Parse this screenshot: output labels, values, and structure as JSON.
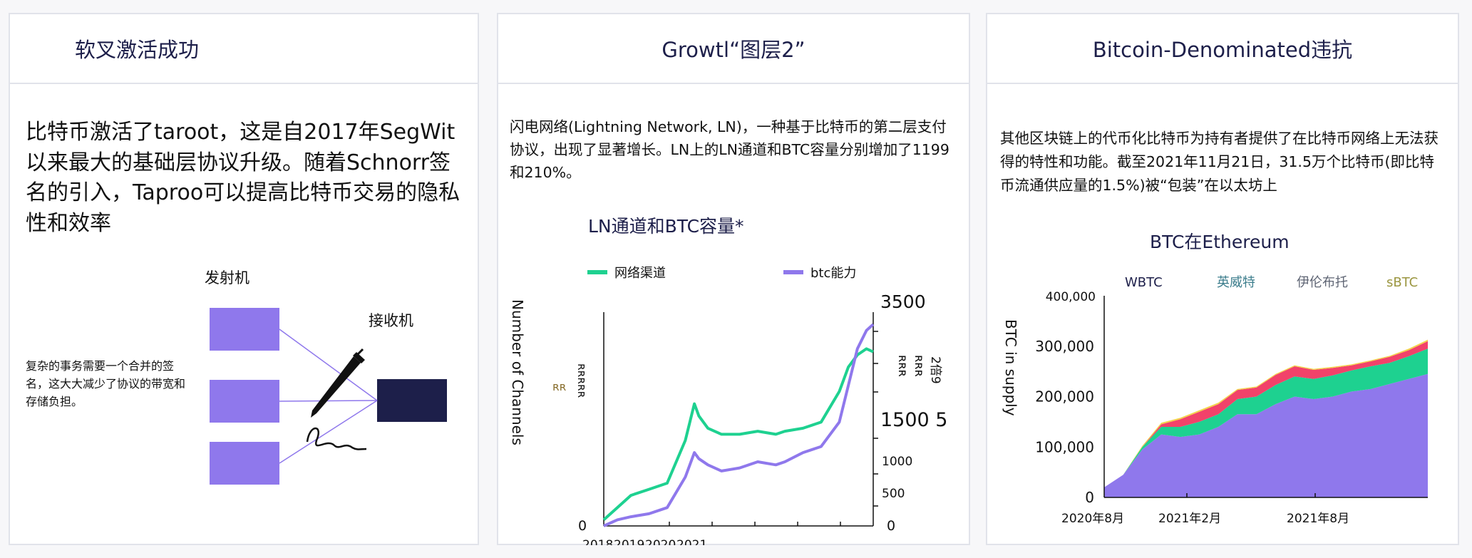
{
  "panels": {
    "taproot": {
      "title": "软叉激活成功",
      "body": "比特币激活了taroot，这是自2017年SegWit以来最大的基础层协议升级。随着Schnorr签名的引入，Taproo可以提高比特币交易的隐私性和效率",
      "diagram": {
        "sender_label": "发射机",
        "receiver_label": "接收机",
        "note": "复杂的事务需要一个合并的签名，这大大减少了协议的带宽和存储负担。"
      }
    },
    "lightning": {
      "title": "Growtl“图层2”",
      "body": "闪电网络(Lightning Network, LN)，一种基于比特币的第二层支付协议，出现了显著增长。LN上的LN通道和BTC容量分别增加了1199和210%。"
    },
    "wrapped": {
      "title": "Bitcoin-Denominated违抗",
      "body": "其他区块链上的代币化比特币为持有者提供了在比特币网络上无法获得的特性和功能。截至2021年11月21日，31.5万个比特币(即比特币流通供应量的1.5%)被“包装”在以太坊上"
    }
  },
  "colors": {
    "accent_purple": "#8f78ec",
    "navy": "#1d1f4a",
    "green": "#1ed190",
    "pink": "#f2426a",
    "yellow": "#f3d34a",
    "tooltip_teal": "#3c7d8c",
    "tooltip_gray": "#5f6574",
    "tooltip_olive": "#9b9640"
  },
  "icons": [
    "pen-signature-icon"
  ],
  "chart_data": [
    {
      "type": "line",
      "title": "LN通道和BTC容量*",
      "x_tick_labels": [
        "2018",
        "2019",
        "2020",
        "2021"
      ],
      "x": [
        2018.0,
        2018.3,
        2018.6,
        2019.0,
        2019.4,
        2019.8,
        2020.0,
        2020.1,
        2020.3,
        2020.6,
        2021.0,
        2021.4,
        2021.8,
        2022.0,
        2022.4,
        2022.8,
        2023.2,
        2023.4,
        2023.6,
        2023.8,
        2023.95
      ],
      "series": [
        {
          "name": "网络渠道",
          "color": "#1ed190",
          "values": [
            100,
            300,
            500,
            600,
            700,
            1400,
            2000,
            1800,
            1600,
            1500,
            1500,
            1550,
            1500,
            1550,
            1600,
            1700,
            2200,
            2600,
            2800,
            2900,
            2850
          ]
        },
        {
          "name": "btc能力",
          "color": "#8f78ec",
          "values": [
            0,
            100,
            150,
            200,
            300,
            800,
            1200,
            1100,
            1000,
            900,
            950,
            1050,
            1000,
            1050,
            1200,
            1300,
            1700,
            2300,
            2900,
            3200,
            3300
          ]
        }
      ],
      "right_axis_ticks": [
        "3500",
        "1500 5",
        "1000",
        "500",
        "0"
      ],
      "left_axis_ticks": [
        "0"
      ],
      "left_axis_label": "Number of Channels",
      "stray_labels": [
        "ʀʀʀʀʀ",
        "ʀʀ",
        "ʀʀʀ",
        "ʀʀʀ",
        "2倍9"
      ],
      "ylim": [
        0,
        3500
      ]
    },
    {
      "type": "area",
      "title": "BTC在Ethereum",
      "ylabel": "BTC in supply",
      "x_tick_labels": [
        "2020年8月",
        "2021年2月",
        "2021年8月"
      ],
      "y_ticks": [
        "400,000",
        "300,000",
        "200,000",
        "100,000",
        "0"
      ],
      "ylim": [
        0,
        400000
      ],
      "legend": [
        "WBTC",
        "英威特",
        "伊伦布托",
        "sBTC"
      ],
      "legend_colors": [
        "#1d1f4a",
        "#3c7d8c",
        "#5f6574",
        "#9b9640"
      ],
      "x_months": [
        0,
        1,
        2,
        3,
        4,
        5,
        6,
        7,
        8,
        9,
        10,
        11,
        12,
        13,
        14,
        15,
        16,
        17
      ],
      "series": [
        {
          "name": "WBTC",
          "color": "#8f78ec",
          "values": [
            20000,
            45000,
            95000,
            125000,
            120000,
            125000,
            140000,
            165000,
            165000,
            185000,
            200000,
            195000,
            200000,
            210000,
            215000,
            225000,
            235000,
            245000
          ]
        },
        {
          "name": "英威特",
          "color": "#1ed190",
          "values": [
            0,
            0,
            5000,
            15000,
            20000,
            25000,
            25000,
            30000,
            35000,
            38000,
            40000,
            40000,
            42000,
            42000,
            45000,
            42000,
            45000,
            50000
          ]
        },
        {
          "name": "伊伦布托",
          "color": "#f2426a",
          "values": [
            0,
            0,
            0,
            5000,
            15000,
            20000,
            20000,
            18000,
            18000,
            20000,
            20000,
            18000,
            15000,
            10000,
            10000,
            12000,
            12000,
            15000
          ]
        },
        {
          "name": "sBTC",
          "color": "#f3d34a",
          "values": [
            0,
            0,
            2000,
            3000,
            3000,
            3000,
            3000,
            2000,
            2000,
            2000,
            2000,
            2000,
            2000,
            2000,
            2000,
            2000,
            3000,
            3000
          ]
        }
      ]
    }
  ]
}
